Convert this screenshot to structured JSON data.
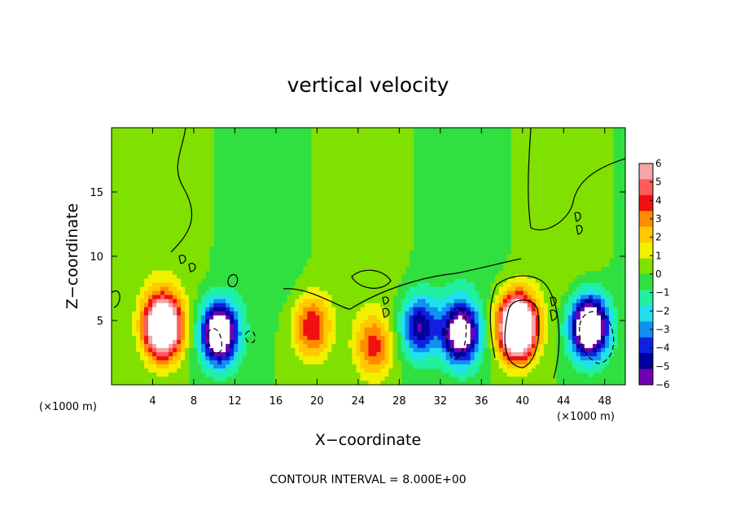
{
  "chart_data": {
    "type": "heatmap",
    "title": "vertical velocity",
    "xlabel": "X−coordinate",
    "ylabel": "Z−coordinate",
    "x_unit_left": "(×1000 m)",
    "x_unit_right": "(×1000 m)",
    "footer": "CONTOUR INTERVAL = 8.000E+00",
    "xlim": [
      0,
      50
    ],
    "ylim": [
      0,
      20
    ],
    "xticks": [
      4,
      8,
      12,
      16,
      20,
      24,
      28,
      32,
      36,
      40,
      44,
      48
    ],
    "xtick_labels": [
      "4",
      "8",
      "12",
      "16",
      "20",
      "24",
      "28",
      "32",
      "36",
      "40",
      "44",
      "48"
    ],
    "yticks": [
      5,
      10,
      15
    ],
    "ytick_labels": [
      "5",
      "10",
      "15"
    ],
    "colorbar": {
      "levels": [
        6,
        5,
        4,
        3,
        2,
        1,
        0,
        -1,
        -2,
        -3,
        -4,
        -5,
        -6
      ],
      "labels": [
        "6",
        "5",
        "4",
        "3",
        "2",
        "1",
        "0",
        "−1",
        "−2",
        "−3",
        "−4",
        "−5",
        "−6"
      ],
      "colors": [
        "#f4a6a6",
        "#ff5c5c",
        "#f01010",
        "#ff8c00",
        "#ffc800",
        "#f0f000",
        "#80e000",
        "#30e040",
        "#20f0a0",
        "#20e0f0",
        "#1090f0",
        "#1020e0",
        "#0000a0",
        "#7000b0"
      ]
    },
    "features": [
      {
        "kind": "updraft",
        "x": 5,
        "z": 4.5,
        "peak": 12
      },
      {
        "kind": "downdraft",
        "x": 10.5,
        "z": 4,
        "peak": -10
      },
      {
        "kind": "updraft",
        "x": 19.5,
        "z": 4.5,
        "peak": 5
      },
      {
        "kind": "updraft",
        "x": 25.5,
        "z": 3,
        "peak": 4.5
      },
      {
        "kind": "downdraft",
        "x": 30,
        "z": 4.5,
        "peak": -6
      },
      {
        "kind": "downdraft",
        "x": 34,
        "z": 4,
        "peak": -9
      },
      {
        "kind": "updraft",
        "x": 39.5,
        "z": 4.5,
        "peak": 14
      },
      {
        "kind": "downdraft",
        "x": 46.5,
        "z": 4.5,
        "peak": -11
      }
    ]
  }
}
